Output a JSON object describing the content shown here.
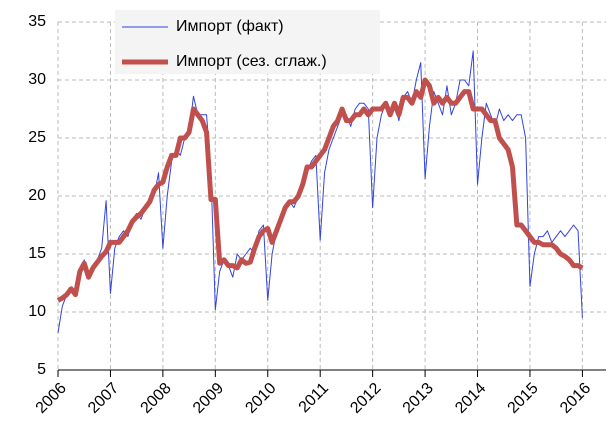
{
  "chart_data": {
    "type": "line",
    "x": [
      2006,
      2006.083,
      2006.167,
      2006.25,
      2006.333,
      2006.417,
      2006.5,
      2006.583,
      2006.667,
      2006.75,
      2006.833,
      2006.917,
      2007,
      2007.083,
      2007.167,
      2007.25,
      2007.333,
      2007.417,
      2007.5,
      2007.583,
      2007.667,
      2007.75,
      2007.833,
      2007.917,
      2008,
      2008.083,
      2008.167,
      2008.25,
      2008.333,
      2008.417,
      2008.5,
      2008.583,
      2008.667,
      2008.75,
      2008.833,
      2008.917,
      2009,
      2009.083,
      2009.167,
      2009.25,
      2009.333,
      2009.417,
      2009.5,
      2009.583,
      2009.667,
      2009.75,
      2009.833,
      2009.917,
      2010,
      2010.083,
      2010.167,
      2010.25,
      2010.333,
      2010.417,
      2010.5,
      2010.583,
      2010.667,
      2010.75,
      2010.833,
      2010.917,
      2011,
      2011.083,
      2011.167,
      2011.25,
      2011.333,
      2011.417,
      2011.5,
      2011.583,
      2011.667,
      2011.75,
      2011.833,
      2011.917,
      2012,
      2012.083,
      2012.167,
      2012.25,
      2012.333,
      2012.417,
      2012.5,
      2012.583,
      2012.667,
      2012.75,
      2012.833,
      2012.917,
      2013,
      2013.083,
      2013.167,
      2013.25,
      2013.333,
      2013.417,
      2013.5,
      2013.583,
      2013.667,
      2013.75,
      2013.833,
      2013.917,
      2014,
      2014.083,
      2014.167,
      2014.25,
      2014.333,
      2014.417,
      2014.5,
      2014.583,
      2014.667,
      2014.75,
      2014.833,
      2014.917,
      2015,
      2015.083,
      2015.167,
      2015.25,
      2015.333,
      2015.417,
      2015.5,
      2015.583,
      2015.667,
      2015.75,
      2015.833,
      2015.917,
      2016
    ],
    "series": [
      {
        "name": "Импорт (факт)",
        "color": "#3344dd",
        "values": [
          8.2,
          10.5,
          11.5,
          12,
          11.5,
          13.5,
          14.5,
          13,
          14,
          14.5,
          15.5,
          19.6,
          11.6,
          15.5,
          16.5,
          17,
          16.5,
          18,
          18.5,
          18,
          19,
          19.5,
          20,
          22,
          15.5,
          20,
          23,
          24,
          23.5,
          25,
          25.5,
          28.6,
          27,
          27,
          27,
          22,
          10.2,
          13.5,
          14.5,
          14,
          13,
          15,
          14.5,
          15,
          15.5,
          15,
          17,
          17.5,
          11,
          15,
          17,
          18,
          19,
          19.5,
          19,
          20,
          21.5,
          22,
          23,
          23.5,
          16.2,
          22,
          24,
          25,
          26,
          27,
          27,
          26,
          27.5,
          28,
          28,
          27.5,
          19,
          25,
          27,
          28,
          27.5,
          28,
          26.5,
          28.5,
          29,
          28,
          30,
          31.5,
          21.5,
          26,
          29,
          28,
          27,
          29.5,
          27,
          28,
          30,
          30,
          29.5,
          32.5,
          21,
          25,
          28,
          27,
          26,
          27.5,
          26.5,
          27,
          26.5,
          27,
          27,
          25,
          12.2,
          15,
          16.5,
          16.5,
          17,
          16,
          16.5,
          17,
          16.5,
          17,
          17.5,
          17,
          9.5
        ]
      },
      {
        "name": "Импорт (сез. сглаж.)",
        "color": "#c0504d",
        "values": [
          11,
          11.2,
          11.5,
          12,
          11.5,
          13.5,
          14.2,
          13,
          13.8,
          14.3,
          14.8,
          15.2,
          16,
          16,
          16,
          16.5,
          17,
          17.8,
          18.2,
          18.5,
          19,
          19.5,
          20.5,
          21,
          21.2,
          22.5,
          23.5,
          23.5,
          25,
          25,
          25.5,
          27.5,
          27,
          26.5,
          25.5,
          19.7,
          19.7,
          14.2,
          14.5,
          14,
          14,
          13.8,
          14.5,
          14.2,
          14.3,
          15.5,
          16.5,
          17,
          17.2,
          16,
          17,
          18,
          19,
          19.5,
          19.5,
          20,
          21,
          22.5,
          22.5,
          23,
          23.5,
          24,
          25,
          26,
          26.5,
          27.5,
          26.5,
          26.5,
          27,
          27,
          27.5,
          27,
          27.5,
          27.5,
          27.5,
          28,
          27,
          28,
          27,
          28.5,
          28.5,
          28,
          29,
          28.5,
          30,
          29.5,
          28,
          28.5,
          28,
          28.5,
          28,
          28,
          28.5,
          29,
          29,
          27.5,
          27.5,
          27.5,
          27,
          26.5,
          26.5,
          25,
          24.5,
          24,
          22.5,
          17.5,
          17.5,
          17,
          16.5,
          16,
          16,
          15.8,
          15.8,
          15.8,
          15.5,
          15,
          14.8,
          14.5,
          14,
          14,
          13.8
        ]
      }
    ],
    "xlim": [
      2006,
      2016.45
    ],
    "xticks": [
      2006,
      2007,
      2008,
      2009,
      2010,
      2011,
      2012,
      2013,
      2014,
      2015,
      2016
    ],
    "ylim": [
      5,
      35
    ],
    "yticks": [
      5,
      10,
      15,
      20,
      25,
      30,
      35
    ],
    "grid": true
  }
}
